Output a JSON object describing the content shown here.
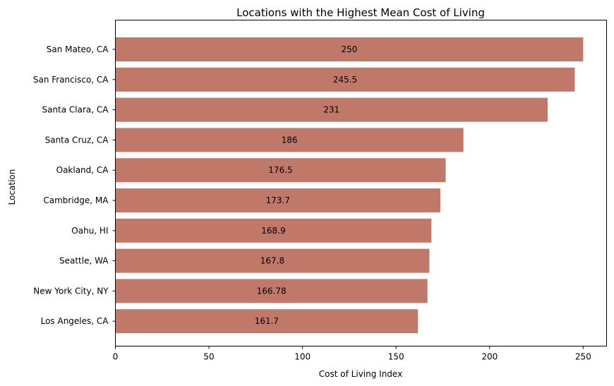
{
  "chart_data": {
    "type": "bar",
    "orientation": "horizontal",
    "title": "Locations with the Highest Mean Cost of Living",
    "xlabel": "Cost of Living Index",
    "ylabel": "Location",
    "categories": [
      "San Mateo, CA",
      "San Francisco, CA",
      "Santa Clara, CA",
      "Santa Cruz, CA",
      "Oakland, CA",
      "Cambridge, MA",
      "Oahu, HI",
      "Seattle, WA",
      "New York City, NY",
      "Los Angeles, CA"
    ],
    "values": [
      250,
      245.5,
      231,
      186,
      176.5,
      173.7,
      168.9,
      167.8,
      166.78,
      161.7
    ],
    "data_labels": [
      "250",
      "245.5",
      "231",
      "186",
      "176.5",
      "173.7",
      "168.9",
      "167.8",
      "166.78",
      "161.7"
    ],
    "xlim": [
      0,
      262.5
    ],
    "xticks": [
      0,
      50,
      100,
      150,
      200,
      250
    ],
    "xtick_labels": [
      "0",
      "50",
      "100",
      "150",
      "200",
      "250"
    ],
    "bar_color": "#c07868",
    "grid": false,
    "legend": "none"
  }
}
